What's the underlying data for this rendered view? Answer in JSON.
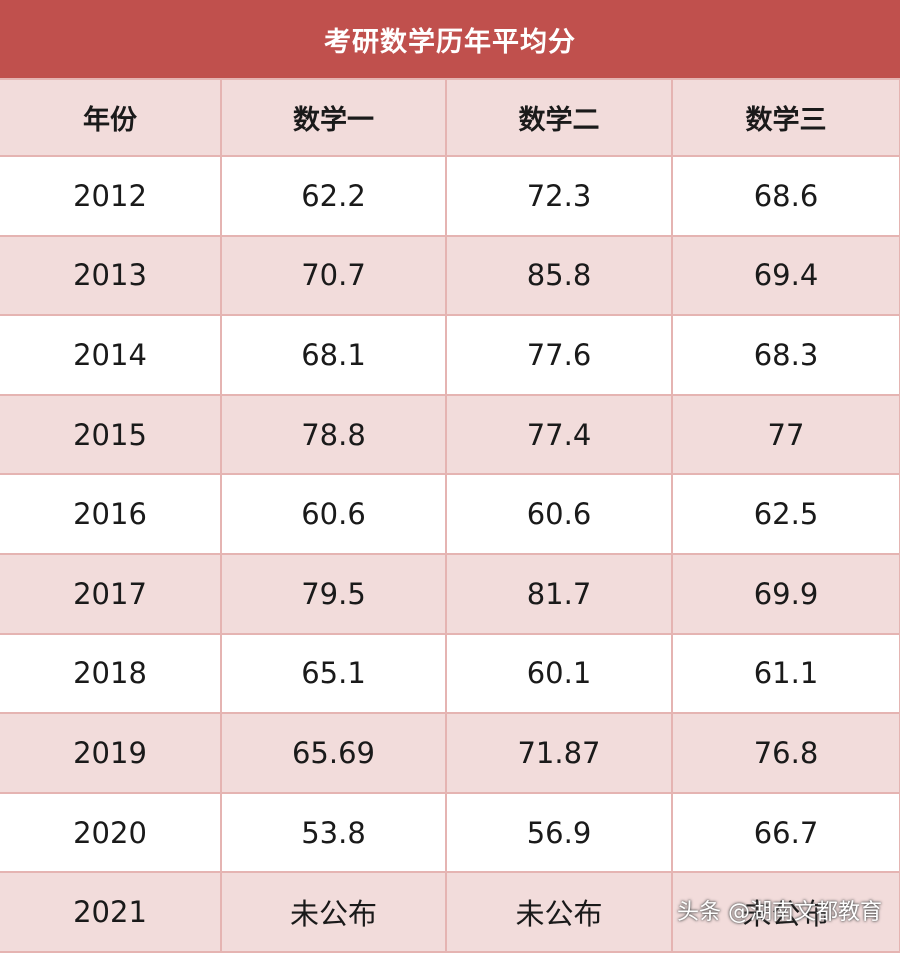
{
  "table": {
    "title": "考研数学历年平均分",
    "headers": [
      "年份",
      "数学一",
      "数学二",
      "数学三"
    ],
    "rows": [
      [
        "2012",
        "62.2",
        "72.3",
        "68.6"
      ],
      [
        "2013",
        "70.7",
        "85.8",
        "69.4"
      ],
      [
        "2014",
        "68.1",
        "77.6",
        "68.3"
      ],
      [
        "2015",
        "78.8",
        "77.4",
        "77"
      ],
      [
        "2016",
        "60.6",
        "60.6",
        "62.5"
      ],
      [
        "2017",
        "79.5",
        "81.7",
        "69.9"
      ],
      [
        "2018",
        "65.1",
        "60.1",
        "61.1"
      ],
      [
        "2019",
        "65.69",
        "71.87",
        "76.8"
      ],
      [
        "2020",
        "53.8",
        "56.9",
        "66.7"
      ],
      [
        "2021",
        "未公布",
        "未公布",
        "未公布"
      ]
    ]
  },
  "watermark": "头条 @湖南文都教育",
  "colors": {
    "title_bg": "#c0504d",
    "header_bg": "#f2dcdb",
    "stripe_bg": "#f2dcdb",
    "border": "#e5b4b2"
  }
}
